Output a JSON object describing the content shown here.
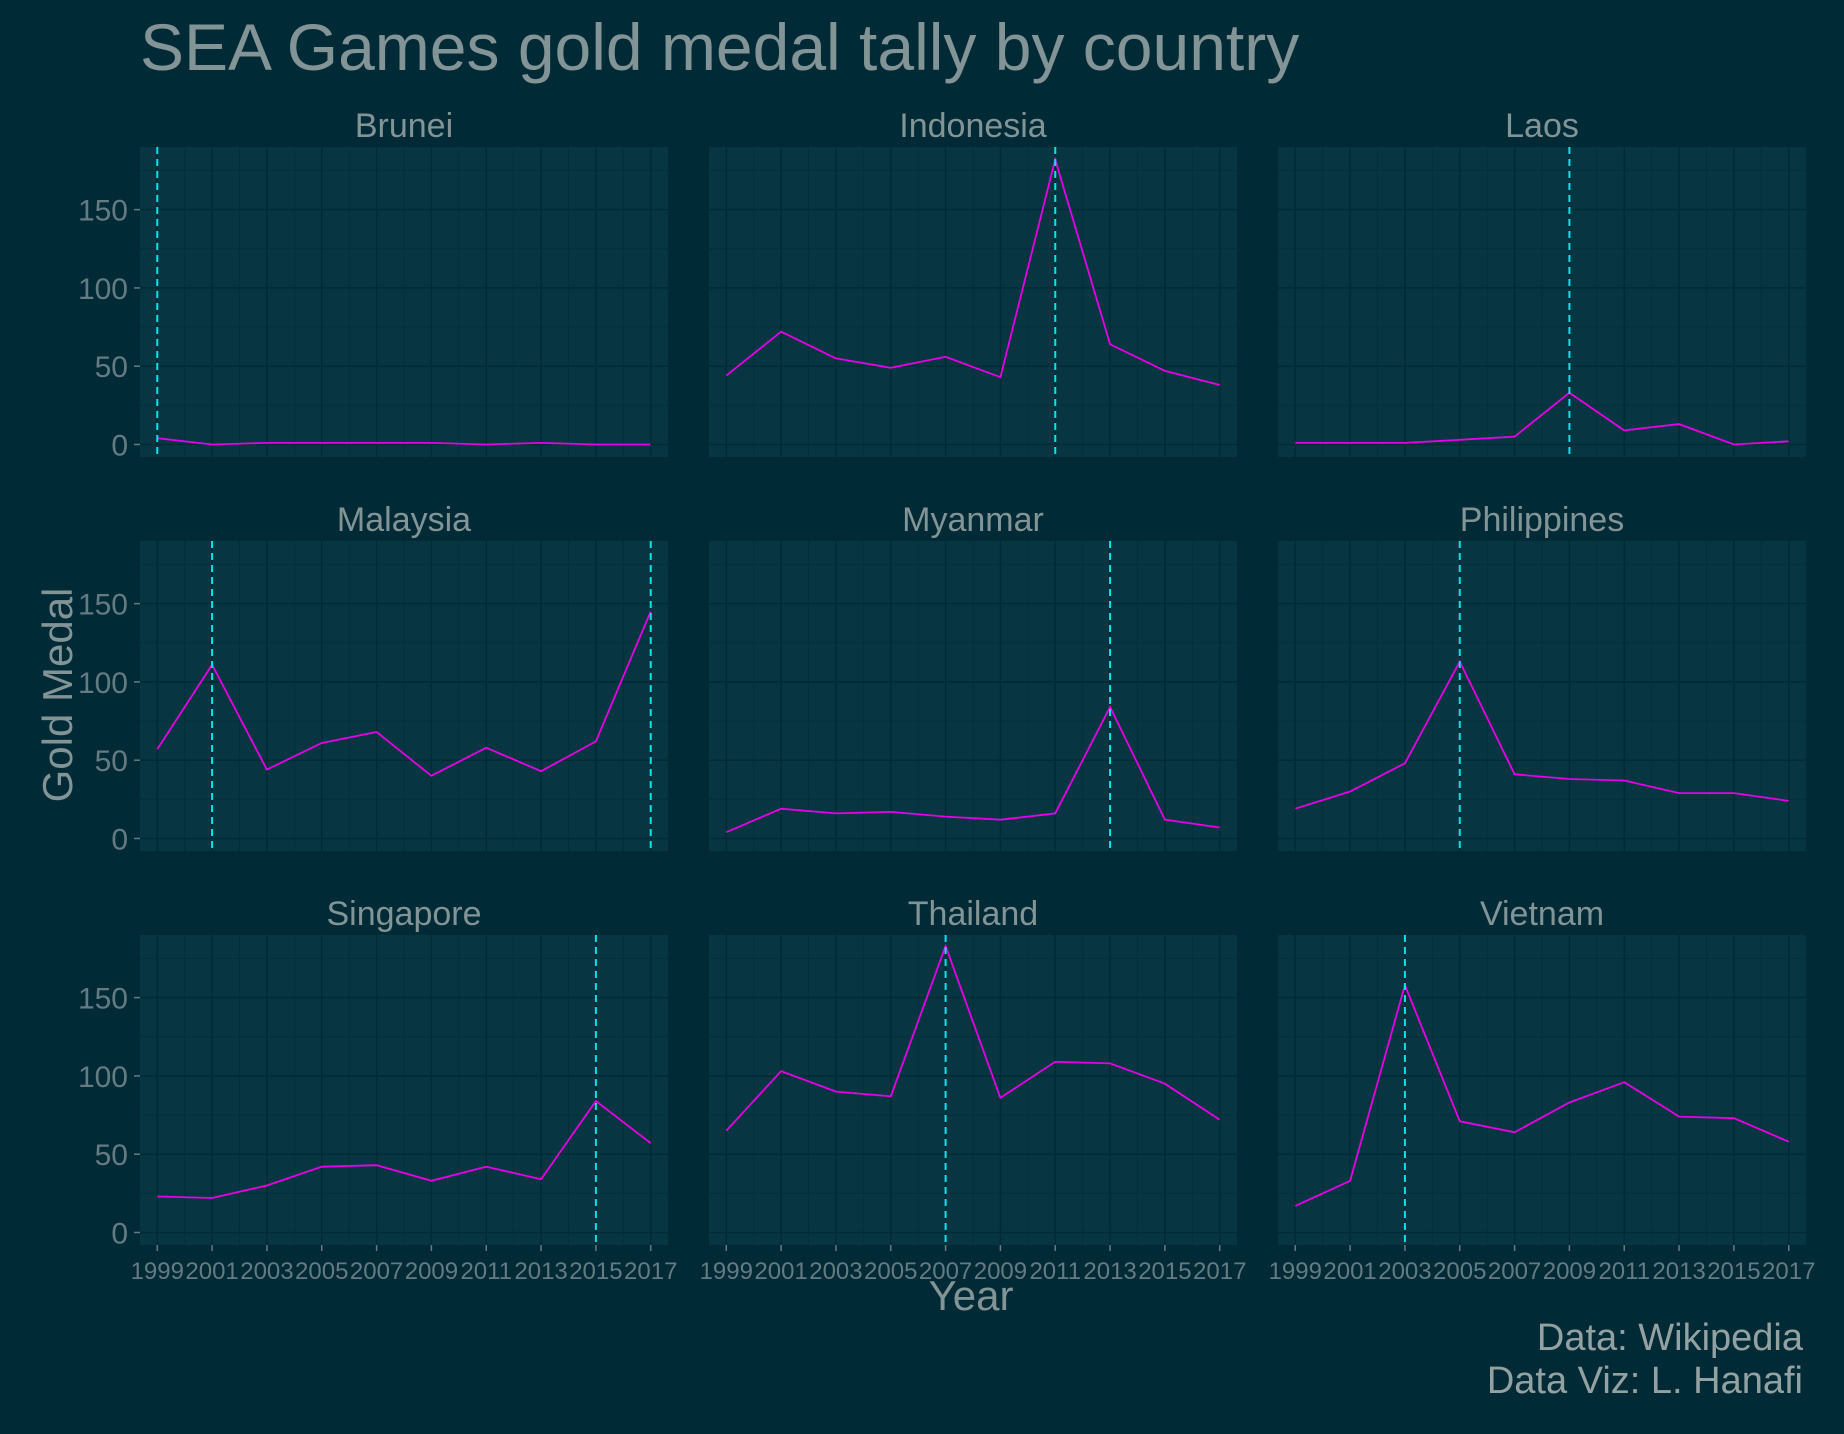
{
  "chart_data": {
    "type": "line",
    "title": "SEA Games gold medal tally by country",
    "xlabel": "Year",
    "ylabel": "Gold Medal",
    "ylim": [
      -8,
      190
    ],
    "yticks": [
      0,
      50,
      100,
      150
    ],
    "x": [
      1999,
      2001,
      2003,
      2005,
      2007,
      2009,
      2011,
      2013,
      2015,
      2017
    ],
    "grid": true,
    "colors": {
      "line": "#e600e6",
      "host_marker": "#00e5e5",
      "panel": "#073642",
      "background": "#002b36"
    },
    "panels": [
      {
        "name": "Brunei",
        "values": [
          4,
          0,
          1,
          1,
          1,
          1,
          0,
          1,
          0,
          0
        ],
        "host_years": [
          1999
        ]
      },
      {
        "name": "Indonesia",
        "values": [
          44,
          72,
          55,
          49,
          56,
          43,
          182,
          64,
          47,
          38
        ],
        "host_years": [
          2011
        ]
      },
      {
        "name": "Laos",
        "values": [
          1,
          1,
          1,
          3,
          5,
          33,
          9,
          13,
          0,
          2
        ],
        "host_years": [
          2009
        ]
      },
      {
        "name": "Malaysia",
        "values": [
          57,
          111,
          44,
          61,
          68,
          40,
          58,
          43,
          62,
          145
        ],
        "host_years": [
          2001,
          2017
        ]
      },
      {
        "name": "Myanmar",
        "values": [
          4,
          19,
          16,
          17,
          14,
          12,
          16,
          84,
          12,
          7
        ],
        "host_years": [
          2013
        ]
      },
      {
        "name": "Philippines",
        "values": [
          19,
          30,
          48,
          113,
          41,
          38,
          37,
          29,
          29,
          24
        ],
        "host_years": [
          2005
        ]
      },
      {
        "name": "Singapore",
        "values": [
          23,
          22,
          30,
          42,
          43,
          33,
          42,
          34,
          84,
          57
        ],
        "host_years": [
          2015
        ]
      },
      {
        "name": "Thailand",
        "values": [
          65,
          103,
          90,
          87,
          183,
          86,
          109,
          108,
          95,
          72
        ],
        "host_years": [
          2007
        ]
      },
      {
        "name": "Vietnam",
        "values": [
          17,
          33,
          158,
          71,
          64,
          83,
          96,
          74,
          73,
          58
        ],
        "host_years": [
          2003
        ]
      }
    ]
  },
  "caption": {
    "line1": "Data: Wikipedia",
    "line2": "Data Viz: L. Hanafi"
  }
}
